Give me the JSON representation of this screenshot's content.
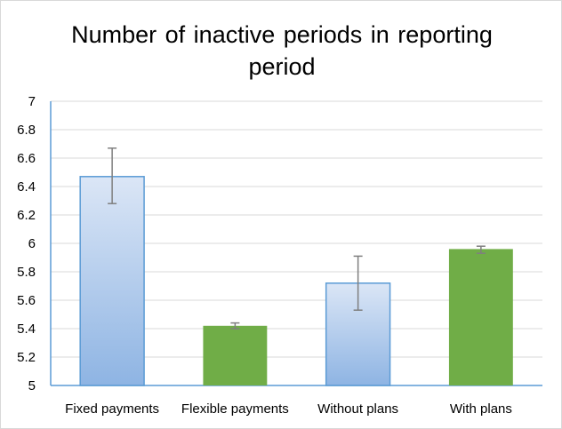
{
  "chart_data": {
    "type": "bar",
    "title": "Number of inactive periods in reporting period",
    "xlabel": "",
    "ylabel": "",
    "ylim": [
      5,
      7
    ],
    "yticks": [
      "5",
      "5.2",
      "5.4",
      "5.6",
      "5.8",
      "6",
      "6.2",
      "6.4",
      "6.6",
      "6.8",
      "7"
    ],
    "categories": [
      "Fixed payments",
      "Flexible payments",
      "Without plans",
      "With plans"
    ],
    "values": [
      6.47,
      5.42,
      5.72,
      5.96
    ],
    "error_low": [
      6.28,
      5.4,
      5.53,
      5.93
    ],
    "error_high": [
      6.67,
      5.44,
      5.91,
      5.98
    ],
    "bar_colors": [
      "blue-gradient",
      "#70ad47",
      "blue-gradient",
      "#70ad47"
    ],
    "grid": true,
    "legend": "none"
  },
  "colors": {
    "blue_light": "#dbe6f6",
    "blue_dark": "#8eb4e3",
    "blue_border": "#5b9bd5",
    "green": "#70ad47",
    "grid": "#d9d9d9",
    "axis": "#5b9bd5",
    "error_bar": "#7f7f7f"
  }
}
